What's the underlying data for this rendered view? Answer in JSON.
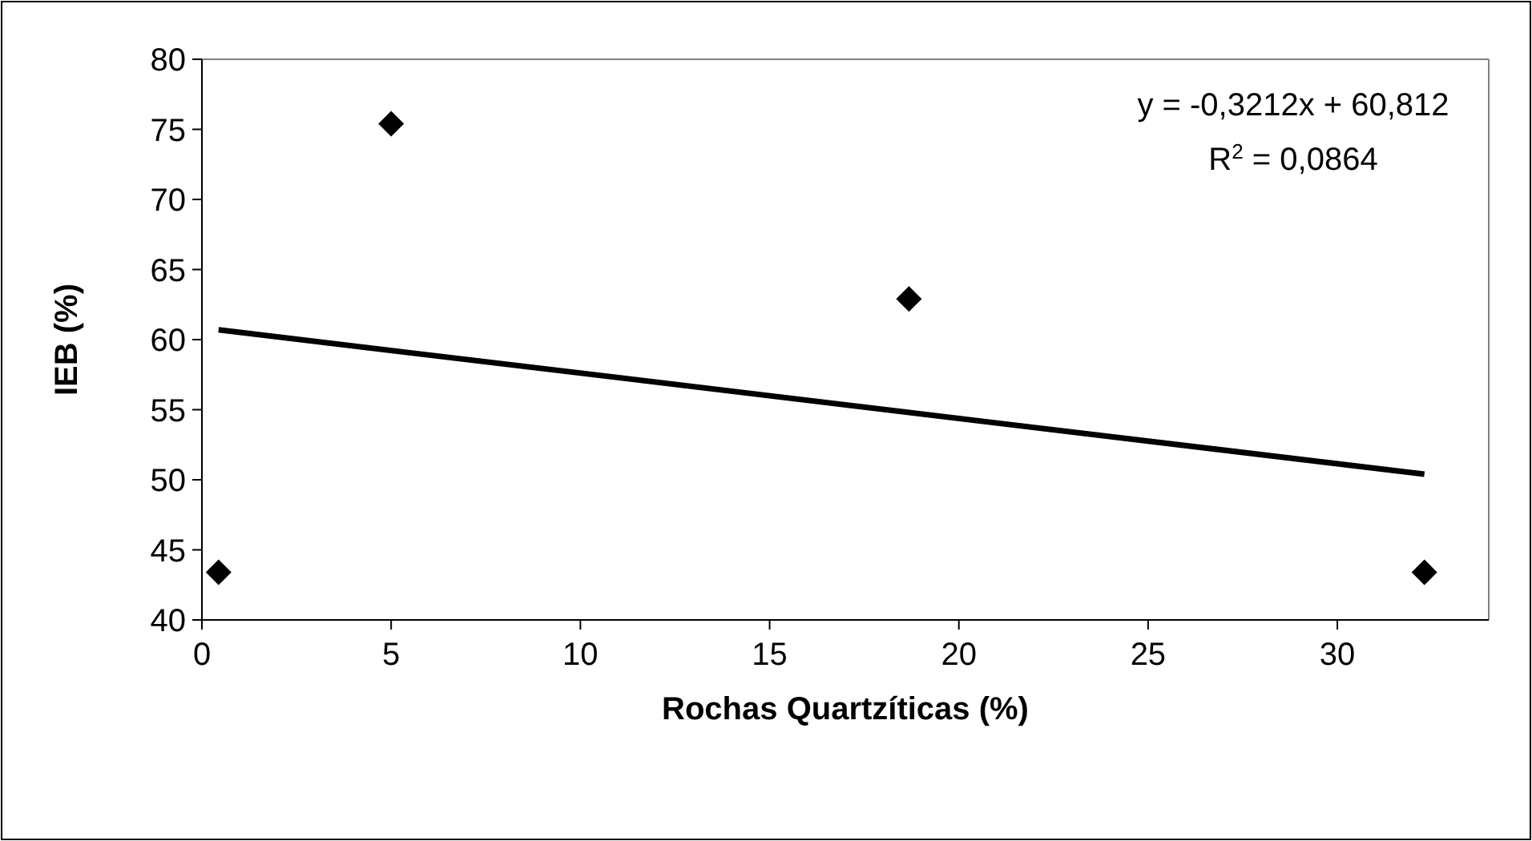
{
  "chart_data": {
    "type": "scatter",
    "xlabel": "Rochas Quartzíticas (%)",
    "ylabel": "IEB (%)",
    "annotations": [
      "y = -0,3212x + 60,812",
      "R$^{2}$ = 0,0864"
    ],
    "xlim": [
      0,
      34
    ],
    "xticks": [
      0,
      5,
      10,
      15,
      20,
      25,
      30
    ],
    "ylim": [
      40,
      80
    ],
    "yticks": [
      40,
      45,
      50,
      55,
      60,
      65,
      70,
      75,
      80
    ],
    "grid": false,
    "marker": "diamond",
    "series": [
      {
        "color": "#000000",
        "x": [
          0.44,
          5.0,
          18.68,
          32.3
        ],
        "values": [
          43.4,
          75.4,
          62.9,
          43.4
        ]
      },
      {
        "type": "line",
        "color": "#000000",
        "marker": "none",
        "line_style": "solid",
        "x": [
          0.44,
          32.3
        ],
        "values": [
          60.7,
          50.4
        ]
      }
    ]
  }
}
